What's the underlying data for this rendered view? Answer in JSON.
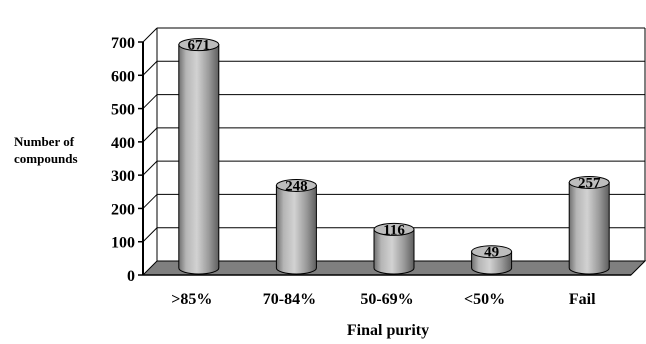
{
  "chart_data": {
    "type": "bar",
    "title": "",
    "xlabel": "Final purity",
    "ylabel_lines": [
      "Number of",
      "compounds"
    ],
    "categories": [
      ">85%",
      "70-84%",
      "50-69%",
      "<50%",
      "Fail"
    ],
    "values": [
      671,
      248,
      116,
      49,
      257
    ],
    "data_labels": [
      "671",
      "248",
      "116",
      "49",
      "257"
    ],
    "ylim": [
      0,
      700
    ],
    "yticks": [
      0,
      100,
      200,
      300,
      400,
      500,
      600,
      700
    ],
    "grid": true,
    "legend": "none",
    "bar_color": "#a8a8a8",
    "floor_color": "#7f7f7f"
  }
}
